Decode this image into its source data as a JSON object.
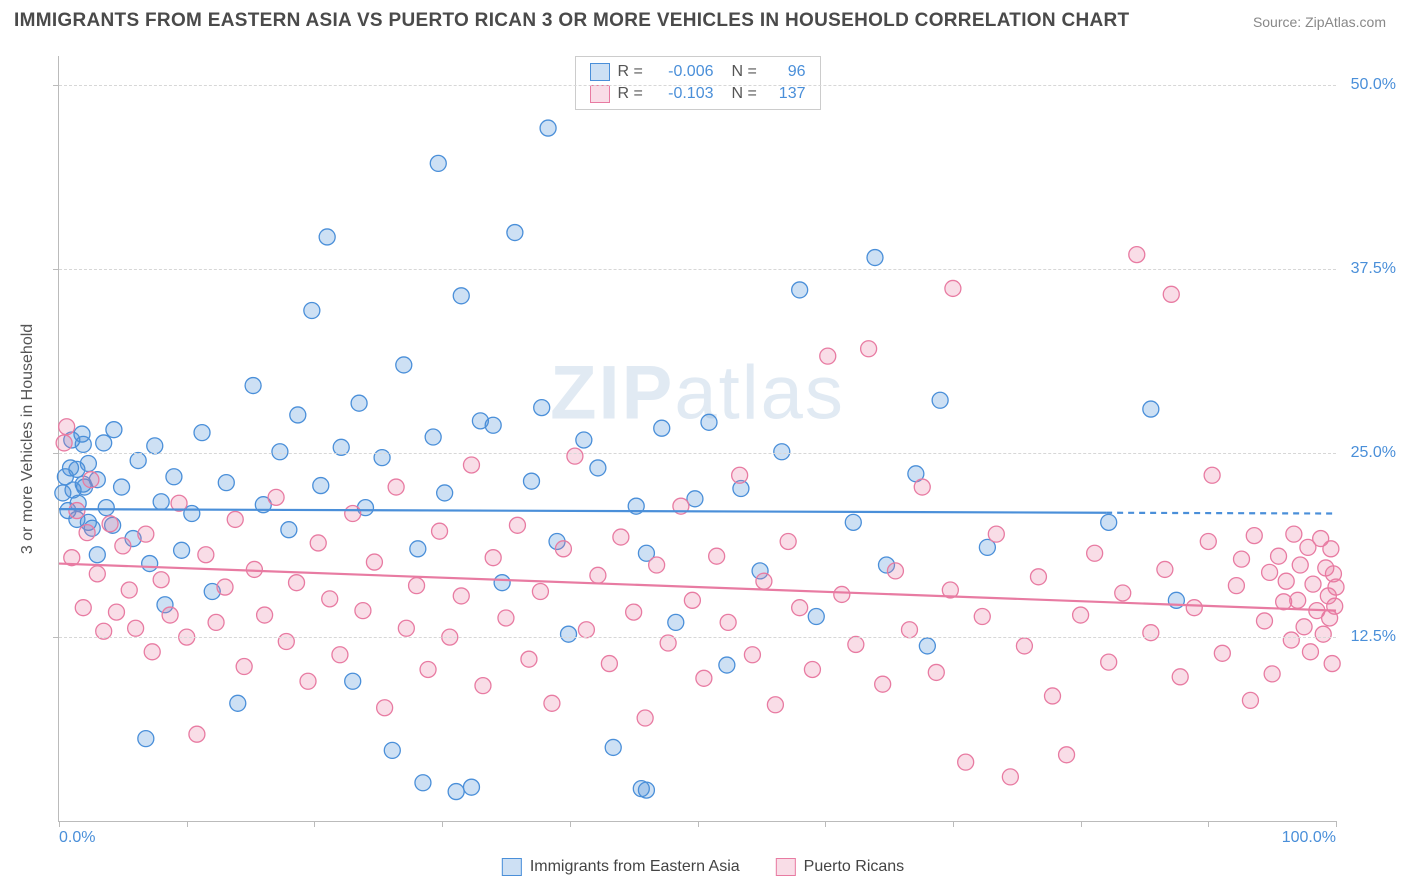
{
  "header": {
    "title": "IMMIGRANTS FROM EASTERN ASIA VS PUERTO RICAN 3 OR MORE VEHICLES IN HOUSEHOLD CORRELATION CHART",
    "source": "Source: ZipAtlas.com"
  },
  "chart": {
    "type": "scatter",
    "y_label": "3 or more Vehicles in Household",
    "watermark": "ZIPatlas",
    "background_color": "#ffffff",
    "grid_color": "#d7d7d7",
    "axis_color": "#bbbbbb",
    "xlim": [
      0,
      100
    ],
    "ylim": [
      0,
      52
    ],
    "y_ticks": [
      {
        "v": 12.5,
        "label": "12.5%"
      },
      {
        "v": 25.0,
        "label": "25.0%"
      },
      {
        "v": 37.5,
        "label": "37.5%"
      },
      {
        "v": 50.0,
        "label": "50.0%"
      }
    ],
    "x_ticks_minor": [
      0,
      10,
      20,
      30,
      40,
      50,
      60,
      70,
      80,
      90,
      100
    ],
    "x_tick_labels": [
      {
        "v": 0,
        "label": "0.0%",
        "color": "#4a8fd9",
        "align": "left"
      },
      {
        "v": 100,
        "label": "100.0%",
        "color": "#4a8fd9",
        "align": "right"
      }
    ],
    "y_tick_color": "#4a8fd9",
    "marker_radius": 8,
    "marker_stroke_width": 1.3,
    "marker_fill_alpha": 0.28,
    "title_fontsize": 19,
    "label_fontsize": 16,
    "series": [
      {
        "id": "eastern_asia",
        "name": "Immigrants from Eastern Asia",
        "color": "#4a8fd9",
        "fill": "rgba(74,143,217,0.28)",
        "stroke": "#4a8fd9",
        "R": "-0.006",
        "N": "96",
        "regression": {
          "y_at_x0": 21.2,
          "y_at_x100": 20.9,
          "extent_x": 82
        },
        "points": [
          [
            0.3,
            22.3
          ],
          [
            0.5,
            23.4
          ],
          [
            0.7,
            21.1
          ],
          [
            0.9,
            24.0
          ],
          [
            1.0,
            25.9
          ],
          [
            1.1,
            22.5
          ],
          [
            1.4,
            20.5
          ],
          [
            1.4,
            23.9
          ],
          [
            1.5,
            21.6
          ],
          [
            1.8,
            26.3
          ],
          [
            1.9,
            22.9
          ],
          [
            1.9,
            25.6
          ],
          [
            2.0,
            22.7
          ],
          [
            2.3,
            24.3
          ],
          [
            2.3,
            20.3
          ],
          [
            2.6,
            19.9
          ],
          [
            3.0,
            18.1
          ],
          [
            3.0,
            23.2
          ],
          [
            3.5,
            25.7
          ],
          [
            3.7,
            21.3
          ],
          [
            4.2,
            20.1
          ],
          [
            4.3,
            26.6
          ],
          [
            4.9,
            22.7
          ],
          [
            5.8,
            19.2
          ],
          [
            6.2,
            24.5
          ],
          [
            6.8,
            5.6
          ],
          [
            7.1,
            17.5
          ],
          [
            7.5,
            25.5
          ],
          [
            8.0,
            21.7
          ],
          [
            8.3,
            14.7
          ],
          [
            9.0,
            23.4
          ],
          [
            9.6,
            18.4
          ],
          [
            10.4,
            20.9
          ],
          [
            11.2,
            26.4
          ],
          [
            12.0,
            15.6
          ],
          [
            13.1,
            23.0
          ],
          [
            14.0,
            8.0
          ],
          [
            15.2,
            29.6
          ],
          [
            16.0,
            21.5
          ],
          [
            17.3,
            25.1
          ],
          [
            18.0,
            19.8
          ],
          [
            18.7,
            27.6
          ],
          [
            19.8,
            34.7
          ],
          [
            20.5,
            22.8
          ],
          [
            21.0,
            39.7
          ],
          [
            22.1,
            25.4
          ],
          [
            23.0,
            9.5
          ],
          [
            23.5,
            28.4
          ],
          [
            24.0,
            21.3
          ],
          [
            25.3,
            24.7
          ],
          [
            26.1,
            4.8
          ],
          [
            27.0,
            31.0
          ],
          [
            28.1,
            18.5
          ],
          [
            28.5,
            2.6
          ],
          [
            29.3,
            26.1
          ],
          [
            29.7,
            44.7
          ],
          [
            30.2,
            22.3
          ],
          [
            31.1,
            2.0
          ],
          [
            31.5,
            35.7
          ],
          [
            32.3,
            2.3
          ],
          [
            33.0,
            27.2
          ],
          [
            34.0,
            26.9
          ],
          [
            34.7,
            16.2
          ],
          [
            35.7,
            40.0
          ],
          [
            37.0,
            23.1
          ],
          [
            37.8,
            28.1
          ],
          [
            38.3,
            47.1
          ],
          [
            39.0,
            19.0
          ],
          [
            39.9,
            12.7
          ],
          [
            41.1,
            25.9
          ],
          [
            42.2,
            24.0
          ],
          [
            43.4,
            5.0
          ],
          [
            45.2,
            21.4
          ],
          [
            45.6,
            2.2
          ],
          [
            46.0,
            2.1
          ],
          [
            46.0,
            18.2
          ],
          [
            47.2,
            26.7
          ],
          [
            48.3,
            13.5
          ],
          [
            49.8,
            21.9
          ],
          [
            50.9,
            27.1
          ],
          [
            52.3,
            10.6
          ],
          [
            53.4,
            22.6
          ],
          [
            54.9,
            17.0
          ],
          [
            56.6,
            25.1
          ],
          [
            58.0,
            36.1
          ],
          [
            59.3,
            13.9
          ],
          [
            62.2,
            20.3
          ],
          [
            63.9,
            38.3
          ],
          [
            64.8,
            17.4
          ],
          [
            67.1,
            23.6
          ],
          [
            68.0,
            11.9
          ],
          [
            69.0,
            28.6
          ],
          [
            72.7,
            18.6
          ],
          [
            82.2,
            20.3
          ],
          [
            85.5,
            28.0
          ],
          [
            87.5,
            15.0
          ]
        ]
      },
      {
        "id": "puerto_ricans",
        "name": "Puerto Ricans",
        "color": "#e87ba2",
        "fill": "rgba(232,123,162,0.26)",
        "stroke": "#e87ba2",
        "R": "-0.103",
        "N": "137",
        "regression": {
          "y_at_x0": 17.5,
          "y_at_x100": 14.3,
          "extent_x": 100
        },
        "points": [
          [
            0.4,
            25.7
          ],
          [
            0.6,
            26.8
          ],
          [
            1.0,
            17.9
          ],
          [
            1.4,
            21.1
          ],
          [
            1.9,
            14.5
          ],
          [
            2.2,
            19.6
          ],
          [
            2.5,
            23.2
          ],
          [
            3.0,
            16.8
          ],
          [
            3.5,
            12.9
          ],
          [
            4.0,
            20.2
          ],
          [
            4.5,
            14.2
          ],
          [
            5.0,
            18.7
          ],
          [
            5.5,
            15.7
          ],
          [
            6.0,
            13.1
          ],
          [
            6.8,
            19.5
          ],
          [
            7.3,
            11.5
          ],
          [
            8.0,
            16.4
          ],
          [
            8.7,
            14.0
          ],
          [
            9.4,
            21.6
          ],
          [
            10.0,
            12.5
          ],
          [
            10.8,
            5.9
          ],
          [
            11.5,
            18.1
          ],
          [
            12.3,
            13.5
          ],
          [
            13.0,
            15.9
          ],
          [
            13.8,
            20.5
          ],
          [
            14.5,
            10.5
          ],
          [
            15.3,
            17.1
          ],
          [
            16.1,
            14.0
          ],
          [
            17.0,
            22.0
          ],
          [
            17.8,
            12.2
          ],
          [
            18.6,
            16.2
          ],
          [
            19.5,
            9.5
          ],
          [
            20.3,
            18.9
          ],
          [
            21.2,
            15.1
          ],
          [
            22.0,
            11.3
          ],
          [
            23.0,
            20.9
          ],
          [
            23.8,
            14.3
          ],
          [
            24.7,
            17.6
          ],
          [
            25.5,
            7.7
          ],
          [
            26.4,
            22.7
          ],
          [
            27.2,
            13.1
          ],
          [
            28.0,
            16.0
          ],
          [
            28.9,
            10.3
          ],
          [
            29.8,
            19.7
          ],
          [
            30.6,
            12.5
          ],
          [
            31.5,
            15.3
          ],
          [
            32.3,
            24.2
          ],
          [
            33.2,
            9.2
          ],
          [
            34.0,
            17.9
          ],
          [
            35.0,
            13.8
          ],
          [
            35.9,
            20.1
          ],
          [
            36.8,
            11.0
          ],
          [
            37.7,
            15.6
          ],
          [
            38.6,
            8.0
          ],
          [
            39.5,
            18.5
          ],
          [
            40.4,
            24.8
          ],
          [
            41.3,
            13.0
          ],
          [
            42.2,
            16.7
          ],
          [
            43.1,
            10.7
          ],
          [
            44.0,
            19.3
          ],
          [
            45.0,
            14.2
          ],
          [
            45.9,
            7.0
          ],
          [
            46.8,
            17.4
          ],
          [
            47.7,
            12.1
          ],
          [
            48.7,
            21.4
          ],
          [
            49.6,
            15.0
          ],
          [
            50.5,
            9.7
          ],
          [
            51.5,
            18.0
          ],
          [
            52.4,
            13.5
          ],
          [
            53.3,
            23.5
          ],
          [
            54.3,
            11.3
          ],
          [
            55.2,
            16.3
          ],
          [
            56.1,
            7.9
          ],
          [
            57.1,
            19.0
          ],
          [
            58.0,
            14.5
          ],
          [
            59.0,
            10.3
          ],
          [
            60.2,
            31.6
          ],
          [
            61.3,
            15.4
          ],
          [
            62.4,
            12.0
          ],
          [
            63.4,
            32.1
          ],
          [
            64.5,
            9.3
          ],
          [
            65.5,
            17.0
          ],
          [
            66.6,
            13.0
          ],
          [
            67.6,
            22.7
          ],
          [
            68.7,
            10.1
          ],
          [
            69.8,
            15.7
          ],
          [
            70.0,
            36.2
          ],
          [
            71.0,
            4.0
          ],
          [
            72.3,
            13.9
          ],
          [
            73.4,
            19.5
          ],
          [
            74.5,
            3.0
          ],
          [
            75.6,
            11.9
          ],
          [
            76.7,
            16.6
          ],
          [
            77.8,
            8.5
          ],
          [
            78.9,
            4.5
          ],
          [
            80.0,
            14.0
          ],
          [
            81.1,
            18.2
          ],
          [
            82.2,
            10.8
          ],
          [
            83.3,
            15.5
          ],
          [
            84.4,
            38.5
          ],
          [
            85.5,
            12.8
          ],
          [
            86.6,
            17.1
          ],
          [
            87.1,
            35.8
          ],
          [
            87.8,
            9.8
          ],
          [
            88.9,
            14.5
          ],
          [
            90.0,
            19.0
          ],
          [
            90.3,
            23.5
          ],
          [
            91.1,
            11.4
          ],
          [
            92.2,
            16.0
          ],
          [
            92.6,
            17.8
          ],
          [
            93.3,
            8.2
          ],
          [
            93.6,
            19.4
          ],
          [
            94.4,
            13.6
          ],
          [
            94.8,
            16.9
          ],
          [
            95.0,
            10.0
          ],
          [
            95.5,
            18.0
          ],
          [
            95.9,
            14.9
          ],
          [
            96.1,
            16.3
          ],
          [
            96.5,
            12.3
          ],
          [
            96.7,
            19.5
          ],
          [
            97.0,
            15.0
          ],
          [
            97.2,
            17.4
          ],
          [
            97.5,
            13.2
          ],
          [
            97.8,
            18.6
          ],
          [
            98.0,
            11.5
          ],
          [
            98.2,
            16.1
          ],
          [
            98.5,
            14.3
          ],
          [
            98.8,
            19.2
          ],
          [
            99.0,
            12.7
          ],
          [
            99.2,
            17.2
          ],
          [
            99.4,
            15.3
          ],
          [
            99.5,
            13.8
          ],
          [
            99.6,
            18.5
          ],
          [
            99.7,
            10.7
          ],
          [
            99.8,
            16.8
          ],
          [
            99.9,
            14.6
          ],
          [
            100.0,
            15.9
          ]
        ]
      }
    ],
    "legend": {
      "items": [
        {
          "series": "eastern_asia",
          "label": "Immigrants from Eastern Asia"
        },
        {
          "series": "puerto_ricans",
          "label": "Puerto Ricans"
        }
      ]
    }
  }
}
